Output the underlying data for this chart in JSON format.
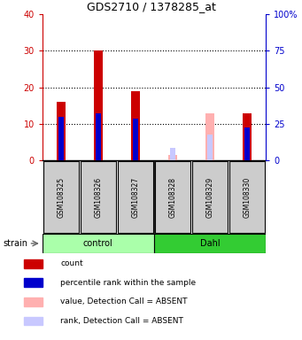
{
  "title": "GDS2710 / 1378285_at",
  "samples": [
    "GSM108325",
    "GSM108326",
    "GSM108327",
    "GSM108328",
    "GSM108329",
    "GSM108330"
  ],
  "red_bars": [
    16,
    30,
    19,
    0,
    0,
    13
  ],
  "blue_bars": [
    12,
    13,
    11.5,
    0,
    0,
    9
  ],
  "pink_bars": [
    0,
    0,
    0,
    1.5,
    13,
    0
  ],
  "lightblue_bars": [
    0,
    0,
    0,
    3.5,
    7,
    0
  ],
  "ylim_left": [
    0,
    40
  ],
  "ylim_right": [
    0,
    100
  ],
  "yticks_left": [
    0,
    10,
    20,
    30,
    40
  ],
  "ytick_labels_right": [
    "0",
    "25",
    "50",
    "75",
    "100%"
  ],
  "left_axis_color": "#cc0000",
  "right_axis_color": "#0000cc",
  "bar_width": 0.25,
  "cell_color": "#cccccc",
  "control_bg": "#aaffaa",
  "dahl_bg": "#33cc33",
  "control_label": "control",
  "dahl_label": "Dahl",
  "strain_label": "strain",
  "legend_items": [
    {
      "color": "#cc0000",
      "label": "count"
    },
    {
      "color": "#0000cc",
      "label": "percentile rank within the sample"
    },
    {
      "color": "#ffb0b0",
      "label": "value, Detection Call = ABSENT"
    },
    {
      "color": "#c8c8ff",
      "label": "rank, Detection Call = ABSENT"
    }
  ]
}
